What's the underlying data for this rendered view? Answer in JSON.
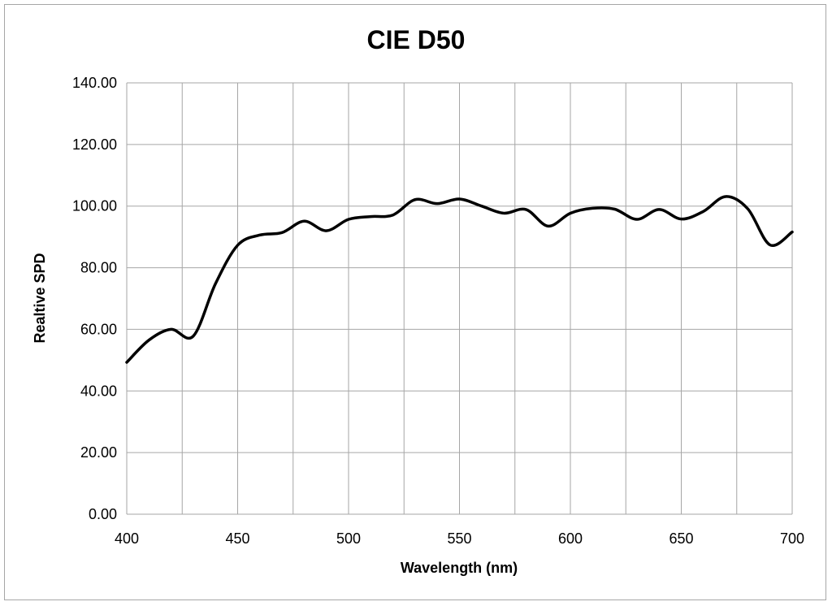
{
  "chart_data": {
    "type": "line",
    "title": "CIE D50",
    "xlabel": "Wavelength (nm)",
    "ylabel": "Realtive SPD",
    "xlim": [
      400,
      700
    ],
    "ylim": [
      0,
      140
    ],
    "x_ticks": [
      "400",
      "450",
      "500",
      "550",
      "600",
      "650",
      "700"
    ],
    "y_ticks": [
      "0.00",
      "20.00",
      "40.00",
      "60.00",
      "80.00",
      "100.00",
      "120.00",
      "140.00"
    ],
    "x_tick_values": [
      400,
      450,
      500,
      550,
      600,
      650,
      700
    ],
    "y_tick_values": [
      0,
      20,
      40,
      60,
      80,
      100,
      120,
      140
    ],
    "x_gridlines": [
      400,
      425,
      450,
      475,
      500,
      525,
      550,
      575,
      600,
      625,
      650,
      675,
      700
    ],
    "y_gridlines": [
      0,
      20,
      40,
      60,
      80,
      100,
      120,
      140
    ],
    "grid": true,
    "line_color": "#000000",
    "grid_color": "#a6a6a6",
    "series": [
      {
        "x": [
          400,
          410,
          420,
          430,
          440,
          450,
          460,
          470,
          480,
          490,
          500,
          510,
          520,
          530,
          540,
          550,
          560,
          570,
          580,
          590,
          600,
          610,
          620,
          630,
          640,
          650,
          660,
          670,
          680,
          690,
          700
        ],
        "values": [
          49.3,
          56.5,
          60.0,
          57.8,
          74.8,
          87.3,
          90.6,
          91.4,
          95.1,
          92.0,
          95.7,
          96.6,
          97.1,
          102.1,
          100.8,
          102.3,
          100.0,
          97.7,
          98.9,
          93.5,
          97.7,
          99.3,
          99.0,
          95.7,
          98.9,
          95.8,
          98.3,
          103.1,
          99.1,
          87.4,
          91.6
        ]
      }
    ]
  }
}
